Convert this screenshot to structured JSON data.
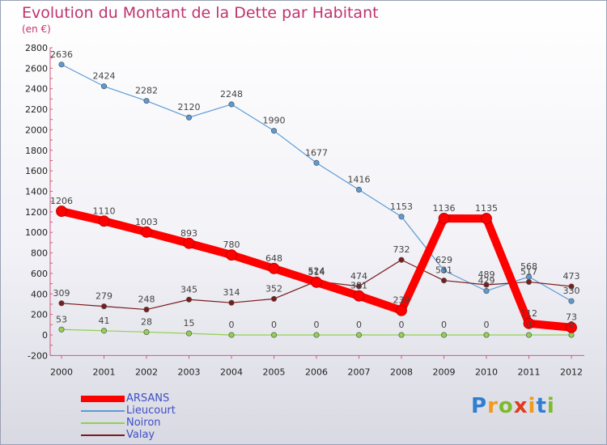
{
  "title": "Evolution du Montant de la Dette par Habitant",
  "unit": "(en €)",
  "logo": {
    "text": "Proxiti",
    "letters": [
      "P",
      "r",
      "o",
      "x",
      "i",
      "t",
      "i"
    ],
    "colors": [
      "#2e7fd0",
      "#f19a1b",
      "#7dbb2c",
      "#e23a1d",
      "#f19a1b",
      "#2e7fd0",
      "#7dbb2c"
    ]
  },
  "chart_data": {
    "type": "line",
    "x": [
      "2000",
      "2001",
      "2002",
      "2003",
      "2004",
      "2005",
      "2006",
      "2007",
      "2008",
      "2009",
      "2010",
      "2011",
      "2012"
    ],
    "yticks": [
      "-200",
      "0",
      "200",
      "400",
      "600",
      "800",
      "1000",
      "1200",
      "1400",
      "1600",
      "1800",
      "2000",
      "2200",
      "2400",
      "2600",
      "2800"
    ],
    "ylim": [
      -200,
      2800
    ],
    "grid": false,
    "legend_position": "bottom-left",
    "series": [
      {
        "name": "ARSANS",
        "color": "#ff0000",
        "values": [
          1206,
          1110,
          1003,
          893,
          780,
          648,
          514,
          381,
          239,
          1136,
          1135,
          112,
          73
        ],
        "labels": [
          "1206",
          "1110",
          "1003",
          "893",
          "780",
          "648",
          "514",
          "381",
          "239",
          "1136",
          "1135",
          "112",
          "73"
        ]
      },
      {
        "name": "Lieucourt",
        "color": "#5b9bd5",
        "values": [
          2636,
          2424,
          2282,
          2120,
          2248,
          1990,
          1677,
          1416,
          1153,
          629,
          429,
          568,
          330
        ],
        "labels": [
          "2636",
          "2424",
          "2282",
          "2120",
          "2248",
          "1990",
          "1677",
          "1416",
          "1153",
          "629",
          "429",
          "568",
          "330"
        ]
      },
      {
        "name": "Noiron",
        "color": "#92d050",
        "values": [
          53,
          41,
          28,
          15,
          0,
          0,
          0,
          0,
          0,
          0,
          0,
          0,
          0
        ],
        "labels": [
          "53",
          "41",
          "28",
          "15",
          "0",
          "0",
          "0",
          "0",
          "0",
          "0",
          "0",
          "0",
          "0"
        ]
      },
      {
        "name": "Valay",
        "color": "#7a1c1c",
        "values": [
          309,
          279,
          248,
          345,
          314,
          352,
          524,
          474,
          732,
          531,
          489,
          517,
          473
        ],
        "labels": [
          "309",
          "279",
          "248",
          "345",
          "314",
          "352",
          "524",
          "474",
          "732",
          "531",
          "489",
          "517",
          "473"
        ]
      }
    ]
  }
}
